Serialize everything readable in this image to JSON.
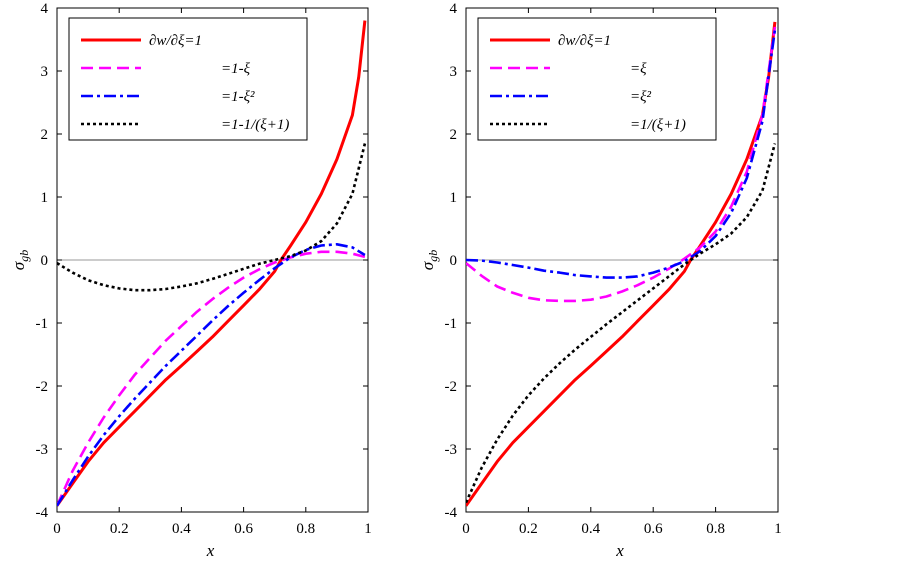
{
  "chart_data": [
    {
      "type": "line",
      "title": "",
      "xlabel": "x",
      "ylabel": "σ_gb",
      "ylabel_main": "σ",
      "ylabel_sub": "gb",
      "xlim": [
        0,
        1
      ],
      "ylim": [
        -4,
        4
      ],
      "xticks": [
        "0",
        "0.2",
        "0.4",
        "0.6",
        "0.8",
        "1"
      ],
      "yticks": [
        "-4",
        "-3",
        "-2",
        "-1",
        "0",
        "1",
        "2",
        "3",
        "4"
      ],
      "grid": false,
      "zero_line": true,
      "legend_position": "top-left",
      "series": [
        {
          "name": "∂w/∂ξ=1",
          "color": "#ff0000",
          "style": "solid",
          "x": [
            0,
            0.05,
            0.1,
            0.15,
            0.2,
            0.25,
            0.3,
            0.35,
            0.4,
            0.45,
            0.5,
            0.55,
            0.6,
            0.65,
            0.7,
            0.72,
            0.75,
            0.8,
            0.85,
            0.9,
            0.95,
            0.97,
            0.99
          ],
          "y": [
            -3.9,
            -3.55,
            -3.2,
            -2.9,
            -2.65,
            -2.4,
            -2.15,
            -1.9,
            -1.68,
            -1.45,
            -1.22,
            -0.97,
            -0.72,
            -0.47,
            -0.18,
            0,
            0.22,
            0.6,
            1.05,
            1.6,
            2.3,
            2.9,
            3.8
          ]
        },
        {
          "name": "=1-ξ",
          "color": "#ff00ff",
          "style": "dashed",
          "x": [
            0,
            0.05,
            0.1,
            0.15,
            0.2,
            0.25,
            0.3,
            0.35,
            0.4,
            0.45,
            0.5,
            0.55,
            0.6,
            0.65,
            0.7,
            0.75,
            0.8,
            0.85,
            0.9,
            0.95,
            0.99
          ],
          "y": [
            -3.9,
            -3.35,
            -2.9,
            -2.5,
            -2.15,
            -1.82,
            -1.55,
            -1.28,
            -1.05,
            -0.82,
            -0.62,
            -0.44,
            -0.28,
            -0.15,
            -0.04,
            0.04,
            0.1,
            0.13,
            0.13,
            0.1,
            0.05
          ]
        },
        {
          "name": "=1-ξ²",
          "color": "#0000ff",
          "style": "dashdot",
          "x": [
            0,
            0.05,
            0.1,
            0.15,
            0.2,
            0.25,
            0.3,
            0.35,
            0.4,
            0.45,
            0.5,
            0.55,
            0.6,
            0.65,
            0.7,
            0.75,
            0.8,
            0.85,
            0.9,
            0.95,
            0.99
          ],
          "y": [
            -3.9,
            -3.5,
            -3.12,
            -2.78,
            -2.48,
            -2.2,
            -1.94,
            -1.68,
            -1.44,
            -1.2,
            -0.96,
            -0.73,
            -0.52,
            -0.32,
            -0.13,
            0.04,
            0.16,
            0.23,
            0.25,
            0.2,
            0.08
          ]
        },
        {
          "name": "=1-1/(ξ+1)",
          "color": "#000000",
          "style": "dotted",
          "x": [
            0,
            0.05,
            0.1,
            0.15,
            0.2,
            0.25,
            0.3,
            0.35,
            0.4,
            0.45,
            0.5,
            0.55,
            0.6,
            0.65,
            0.7,
            0.75,
            0.8,
            0.85,
            0.9,
            0.95,
            0.99
          ],
          "y": [
            -0.05,
            -0.2,
            -0.32,
            -0.4,
            -0.45,
            -0.48,
            -0.48,
            -0.46,
            -0.42,
            -0.37,
            -0.3,
            -0.22,
            -0.14,
            -0.06,
            0,
            0.06,
            0.15,
            0.3,
            0.58,
            1.05,
            1.85
          ]
        }
      ]
    },
    {
      "type": "line",
      "title": "",
      "xlabel": "x",
      "ylabel": "σ_gb",
      "ylabel_main": "σ",
      "ylabel_sub": "gb",
      "xlim": [
        0,
        1
      ],
      "ylim": [
        -4,
        4
      ],
      "xticks": [
        "0",
        "0.2",
        "0.4",
        "0.6",
        "0.8",
        "1"
      ],
      "yticks": [
        "-4",
        "-3",
        "-2",
        "-1",
        "0",
        "1",
        "2",
        "3",
        "4"
      ],
      "grid": false,
      "zero_line": true,
      "legend_position": "top-left",
      "series": [
        {
          "name": "∂w/∂ξ=1",
          "color": "#ff0000",
          "style": "solid",
          "x": [
            0,
            0.05,
            0.1,
            0.15,
            0.2,
            0.25,
            0.3,
            0.35,
            0.4,
            0.45,
            0.5,
            0.55,
            0.6,
            0.65,
            0.7,
            0.72,
            0.75,
            0.8,
            0.85,
            0.9,
            0.95,
            0.97,
            0.99
          ],
          "y": [
            -3.9,
            -3.55,
            -3.2,
            -2.9,
            -2.65,
            -2.4,
            -2.15,
            -1.9,
            -1.68,
            -1.45,
            -1.22,
            -0.97,
            -0.72,
            -0.47,
            -0.18,
            0,
            0.22,
            0.6,
            1.05,
            1.6,
            2.3,
            2.9,
            3.78
          ]
        },
        {
          "name": "=ξ",
          "color": "#ff00ff",
          "style": "dashed",
          "x": [
            0,
            0.05,
            0.1,
            0.15,
            0.2,
            0.25,
            0.3,
            0.35,
            0.4,
            0.45,
            0.5,
            0.55,
            0.6,
            0.65,
            0.7,
            0.75,
            0.8,
            0.85,
            0.9,
            0.95,
            0.99
          ],
          "y": [
            -0.05,
            -0.25,
            -0.42,
            -0.52,
            -0.6,
            -0.64,
            -0.65,
            -0.65,
            -0.63,
            -0.58,
            -0.5,
            -0.4,
            -0.28,
            -0.14,
            0.02,
            0.2,
            0.45,
            0.85,
            1.4,
            2.3,
            3.7
          ]
        },
        {
          "name": "=ξ²",
          "color": "#0000ff",
          "style": "dashdot",
          "x": [
            0,
            0.05,
            0.1,
            0.15,
            0.2,
            0.25,
            0.3,
            0.35,
            0.4,
            0.45,
            0.5,
            0.55,
            0.6,
            0.65,
            0.7,
            0.75,
            0.8,
            0.85,
            0.9,
            0.95,
            0.99
          ],
          "y": [
            0,
            -0.01,
            -0.04,
            -0.08,
            -0.12,
            -0.17,
            -0.2,
            -0.24,
            -0.26,
            -0.28,
            -0.28,
            -0.26,
            -0.2,
            -0.12,
            -0.02,
            0.14,
            0.38,
            0.75,
            1.3,
            2.2,
            3.65
          ]
        },
        {
          "name": "=1/(ξ+1)",
          "color": "#000000",
          "style": "dotted",
          "x": [
            0,
            0.05,
            0.1,
            0.15,
            0.2,
            0.25,
            0.3,
            0.35,
            0.4,
            0.45,
            0.5,
            0.55,
            0.6,
            0.65,
            0.7,
            0.75,
            0.8,
            0.85,
            0.9,
            0.95,
            0.99
          ],
          "y": [
            -3.85,
            -3.3,
            -2.85,
            -2.47,
            -2.15,
            -1.88,
            -1.64,
            -1.42,
            -1.22,
            -1.02,
            -0.83,
            -0.64,
            -0.45,
            -0.26,
            -0.07,
            0.1,
            0.25,
            0.42,
            0.68,
            1.1,
            1.85
          ]
        }
      ]
    }
  ]
}
